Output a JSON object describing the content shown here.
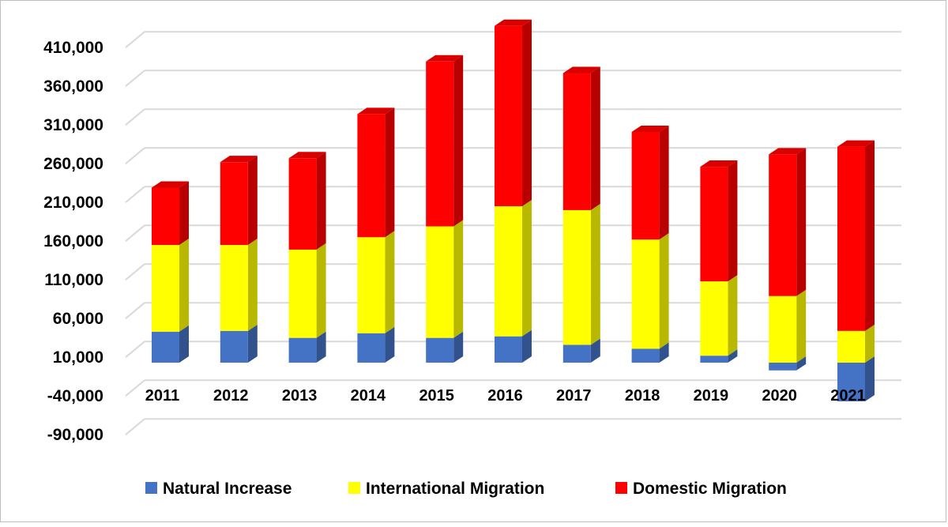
{
  "chart_data": {
    "type": "bar",
    "stacked": true,
    "three_d": true,
    "categories": [
      "2011",
      "2012",
      "2013",
      "2014",
      "2015",
      "2016",
      "2017",
      "2018",
      "2019",
      "2020",
      "2021"
    ],
    "series": [
      {
        "name": "Natural Increase",
        "color": "#4472c4",
        "values": [
          40000,
          41000,
          32000,
          38000,
          32000,
          34000,
          23000,
          18000,
          9000,
          -10000,
          -50000
        ]
      },
      {
        "name": "International Migration",
        "color": "#ffff00",
        "values": [
          112000,
          111000,
          114000,
          124000,
          144000,
          168000,
          174000,
          141000,
          96000,
          86000,
          41000
        ]
      },
      {
        "name": "Domestic Migration",
        "color": "#ff0000",
        "values": [
          74000,
          107000,
          118000,
          159000,
          213000,
          233000,
          177000,
          139000,
          148000,
          183000,
          238000
        ]
      }
    ],
    "y_ticks": [
      "410,000",
      "360,000",
      "310,000",
      "260,000",
      "210,000",
      "160,000",
      "110,000",
      "60,000",
      "10,000",
      "-40,000",
      "-90,000"
    ],
    "y_tick_values": [
      410000,
      360000,
      310000,
      260000,
      210000,
      160000,
      110000,
      60000,
      10000,
      -40000,
      -90000
    ],
    "ylim": [
      -90000,
      410000
    ],
    "grid": true,
    "legend_position": "bottom"
  }
}
